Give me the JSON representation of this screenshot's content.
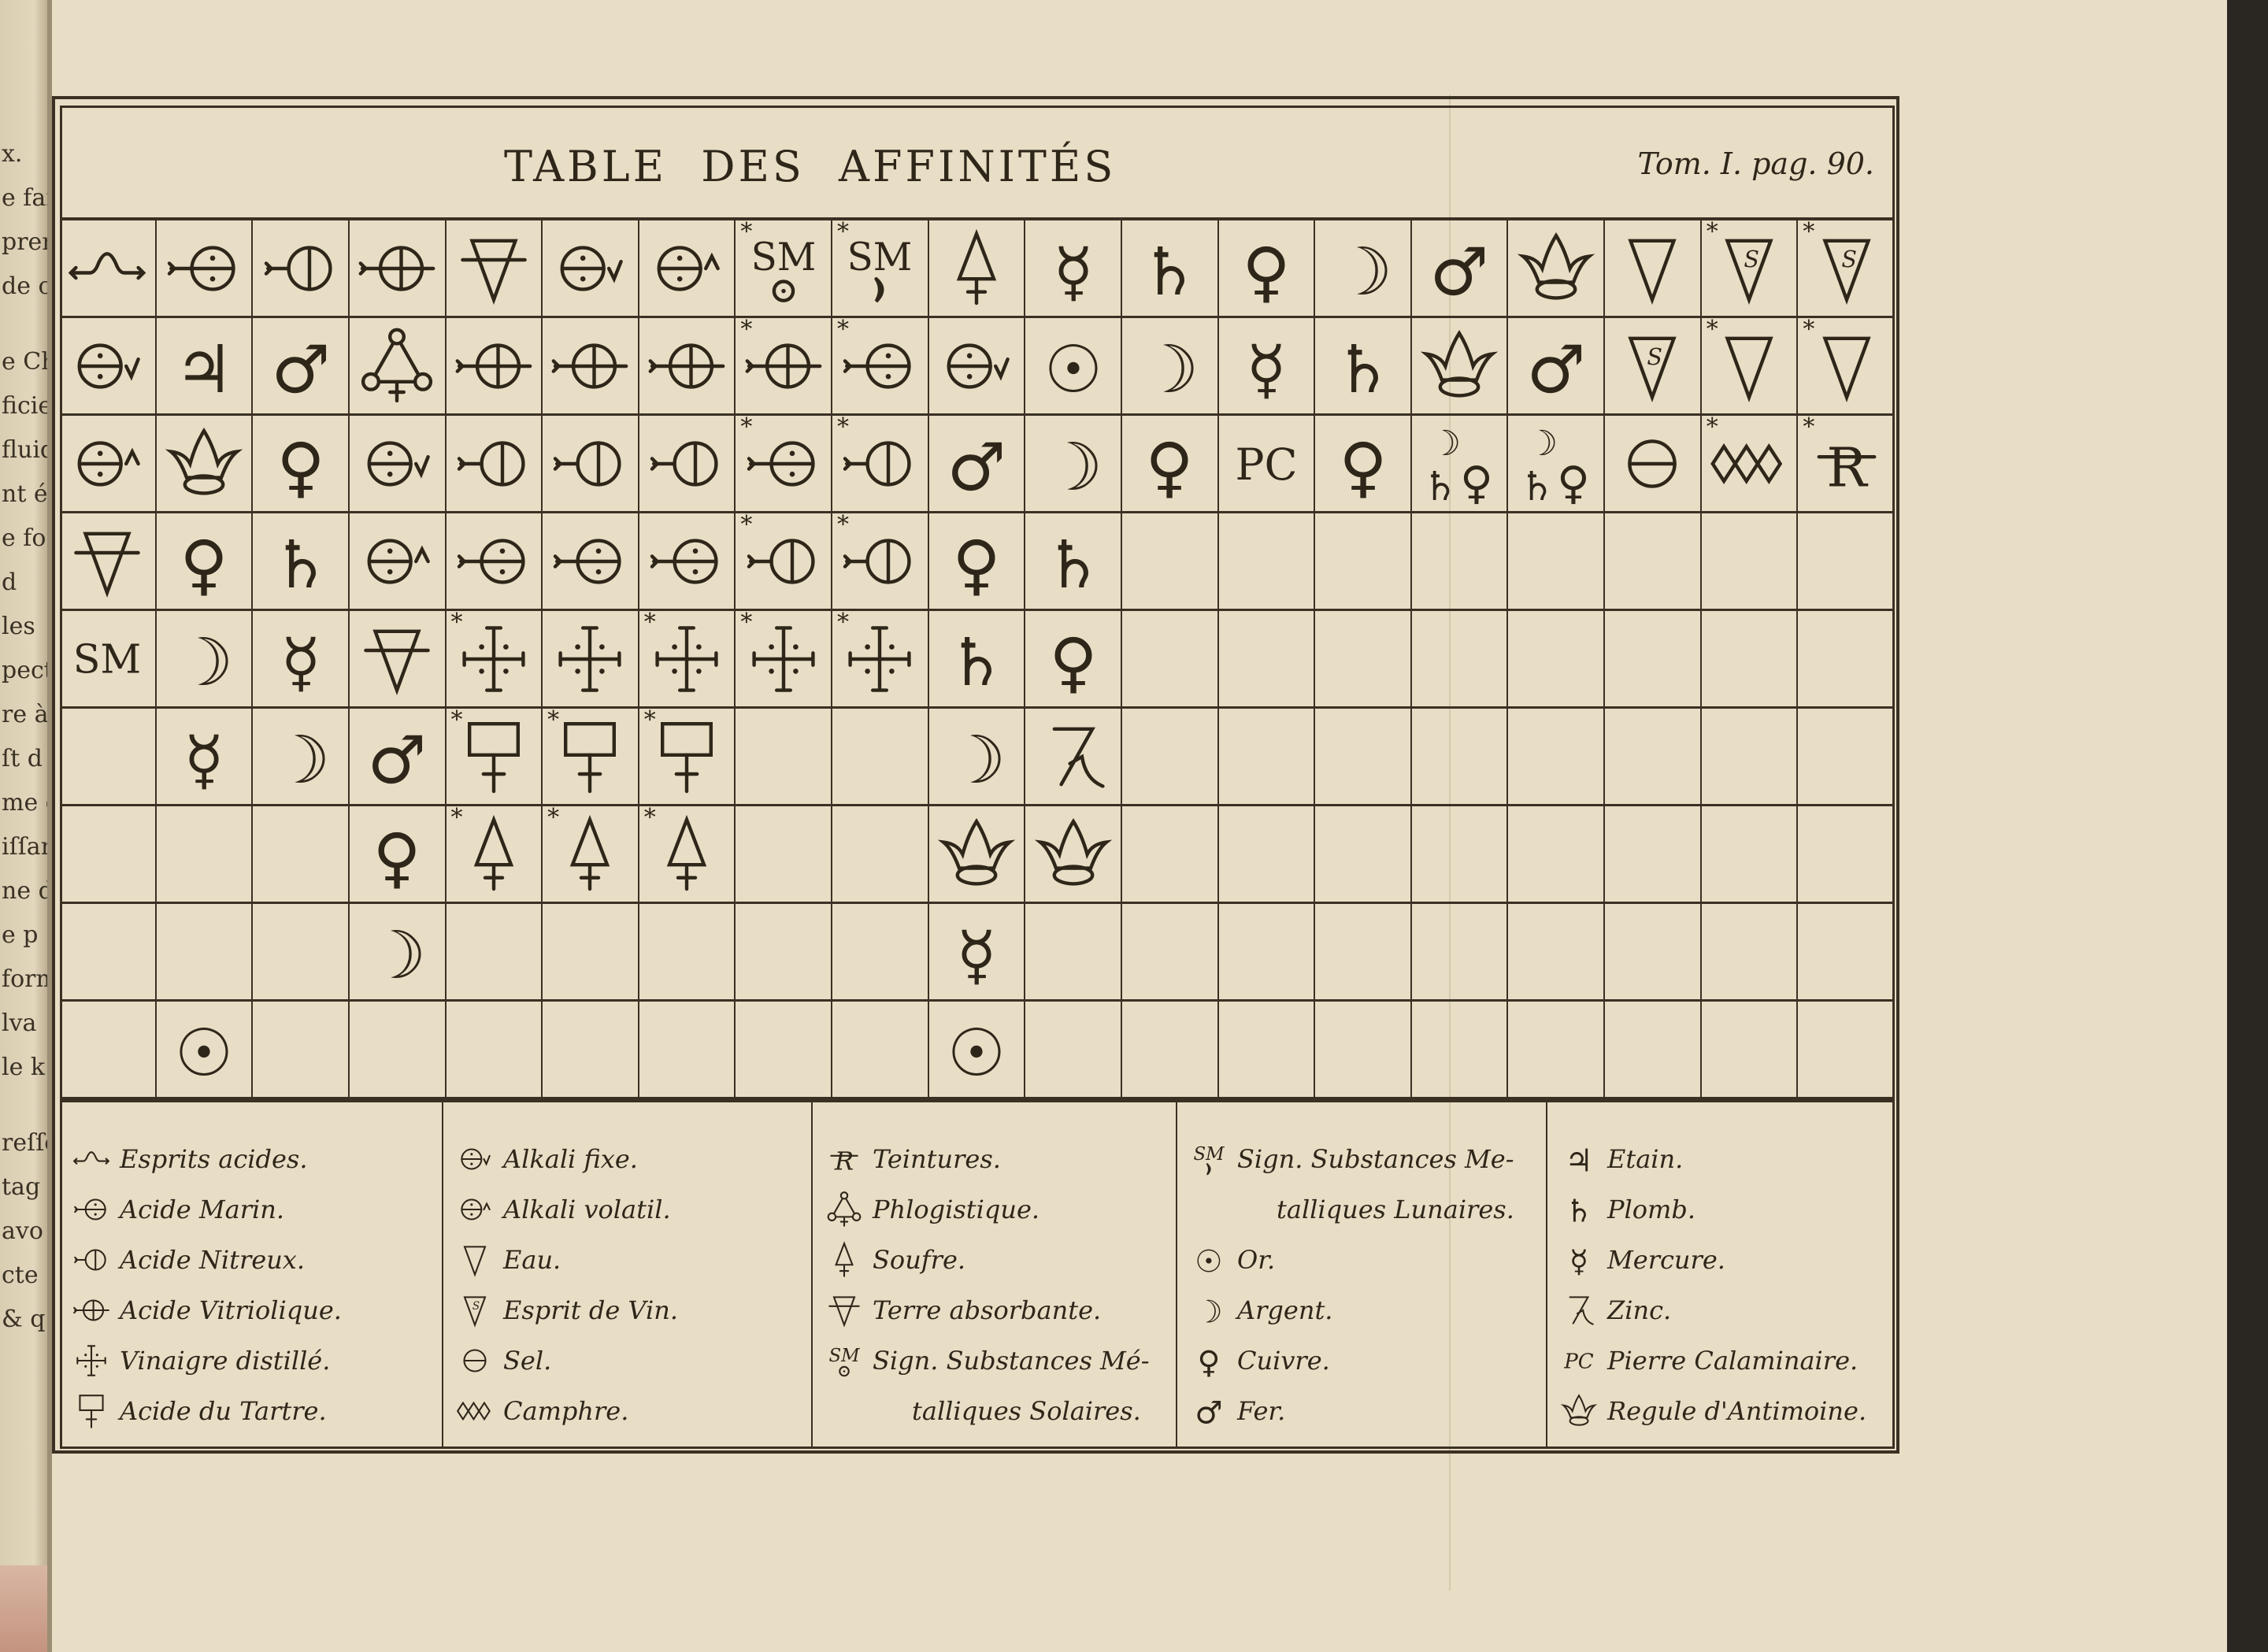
{
  "colors": {
    "paper": "#e8dec6",
    "ink": "#2e2619",
    "binding": "#2a2622"
  },
  "left_page_fragments": [
    "x.",
    "e faiso",
    "preno",
    "de ce",
    "e Ch",
    "ficiel",
    "fluid",
    "nt é",
    "e fo",
    "d",
    "les",
    "pecti",
    "re à",
    "ſt d",
    "me d",
    "iſſan",
    "ne d",
    "e p",
    "form",
    "lva",
    "le k",
    "reſſe",
    "tag",
    "avo",
    "cte",
    "& q"
  ],
  "header": {
    "title": "TABLE DES AFFINITÉS",
    "reference": "Tom. I. pag. 90."
  },
  "grid": {
    "columns": 19,
    "rows": [
      [
        {
          "sym": "esprits-acides"
        },
        {
          "sym": "acide-marin"
        },
        {
          "sym": "acide-nitreux"
        },
        {
          "sym": "acide-vitriolique"
        },
        {
          "sym": "terre-absorbante"
        },
        {
          "sym": "alkali-fixe"
        },
        {
          "sym": "alkali-volatil"
        },
        {
          "sym": "sm-solaire",
          "star": true
        },
        {
          "sym": "sm-lunaire",
          "star": true
        },
        {
          "sym": "soufre"
        },
        {
          "sym": "mercure"
        },
        {
          "sym": "plomb"
        },
        {
          "sym": "cuivre"
        },
        {
          "sym": "argent"
        },
        {
          "sym": "fer"
        },
        {
          "sym": "regule"
        },
        {
          "sym": "eau"
        },
        {
          "sym": "esprit-de-vin",
          "star": true
        },
        {
          "sym": "esprit-de-vin",
          "star": true
        }
      ],
      [
        {
          "sym": "alkali-fixe"
        },
        {
          "sym": "etain"
        },
        {
          "sym": "fer"
        },
        {
          "sym": "phlogistique"
        },
        {
          "sym": "acide-vitriolique"
        },
        {
          "sym": "acide-vitriolique"
        },
        {
          "sym": "acide-vitriolique"
        },
        {
          "sym": "acide-vitriolique",
          "star": true
        },
        {
          "sym": "acide-marin",
          "star": true
        },
        {
          "sym": "alkali-fixe"
        },
        {
          "sym": "or"
        },
        {
          "sym": "argent"
        },
        {
          "sym": "mercure"
        },
        {
          "sym": "plomb"
        },
        {
          "sym": "regule"
        },
        {
          "sym": "fer"
        },
        {
          "sym": "esprit-de-vin"
        },
        {
          "sym": "eau",
          "star": true
        },
        {
          "sym": "eau",
          "star": true
        }
      ],
      [
        {
          "sym": "alkali-volatil"
        },
        {
          "sym": "regule"
        },
        {
          "sym": "cuivre"
        },
        {
          "sym": "alkali-fixe"
        },
        {
          "sym": "acide-nitreux"
        },
        {
          "sym": "acide-nitreux"
        },
        {
          "sym": "acide-nitreux"
        },
        {
          "sym": "acide-marin",
          "star": true
        },
        {
          "sym": "acide-nitreux",
          "star": true
        },
        {
          "sym": "fer"
        },
        {
          "sym": "argent"
        },
        {
          "sym": "cuivre"
        },
        {
          "sym": "pierre-calaminaire"
        },
        {
          "sym": "cuivre"
        },
        {
          "sym": "argent-plomb-cuivre"
        },
        {
          "sym": "argent-plomb-cuivre"
        },
        {
          "sym": "sel"
        },
        {
          "sym": "camphre",
          "star": true
        },
        {
          "sym": "teintures",
          "star": true
        }
      ],
      [
        {
          "sym": "terre-absorbante"
        },
        {
          "sym": "cuivre"
        },
        {
          "sym": "plomb"
        },
        {
          "sym": "alkali-volatil"
        },
        {
          "sym": "acide-marin"
        },
        {
          "sym": "acide-marin"
        },
        {
          "sym": "acide-marin"
        },
        {
          "sym": "acide-nitreux",
          "star": true
        },
        {
          "sym": "acide-nitreux",
          "star": true
        },
        {
          "sym": "cuivre"
        },
        {
          "sym": "plomb"
        },
        {},
        {},
        {},
        {},
        {},
        {},
        {},
        {}
      ],
      [
        {
          "sym": "substances-metalliques"
        },
        {
          "sym": "argent"
        },
        {
          "sym": "mercure"
        },
        {
          "sym": "terre-absorbante"
        },
        {
          "sym": "vinaigre",
          "star": true
        },
        {
          "sym": "vinaigre"
        },
        {
          "sym": "vinaigre",
          "star": true
        },
        {
          "sym": "vinaigre",
          "star": true
        },
        {
          "sym": "vinaigre",
          "star": true
        },
        {
          "sym": "plomb"
        },
        {
          "sym": "cuivre"
        },
        {},
        {},
        {},
        {},
        {},
        {},
        {},
        {}
      ],
      [
        {},
        {
          "sym": "mercure"
        },
        {
          "sym": "argent"
        },
        {
          "sym": "fer"
        },
        {
          "sym": "acide-tartre",
          "star": true
        },
        {
          "sym": "acide-tartre",
          "star": true
        },
        {
          "sym": "acide-tartre",
          "star": true
        },
        {},
        {},
        {
          "sym": "argent"
        },
        {
          "sym": "zinc"
        },
        {},
        {},
        {},
        {},
        {},
        {},
        {},
        {}
      ],
      [
        {},
        {},
        {},
        {
          "sym": "cuivre"
        },
        {
          "sym": "soufre",
          "star": true
        },
        {
          "sym": "soufre",
          "star": true
        },
        {
          "sym": "soufre",
          "star": true
        },
        {},
        {},
        {
          "sym": "regule"
        },
        {
          "sym": "regule"
        },
        {},
        {},
        {},
        {},
        {},
        {},
        {},
        {}
      ],
      [
        {},
        {},
        {},
        {
          "sym": "argent"
        },
        {},
        {},
        {},
        {},
        {},
        {
          "sym": "mercure"
        },
        {},
        {},
        {},
        {},
        {},
        {},
        {},
        {},
        {}
      ],
      [
        {},
        {
          "sym": "or"
        },
        {},
        {},
        {},
        {},
        {},
        {},
        {},
        {
          "sym": "or"
        },
        {},
        {},
        {},
        {},
        {},
        {},
        {},
        {},
        {}
      ]
    ]
  },
  "legend": [
    [
      {
        "icon": "esprits-acides",
        "label": "Esprits acides."
      },
      {
        "icon": "acide-marin",
        "label": "Acide Marin."
      },
      {
        "icon": "acide-nitreux",
        "label": "Acide Nitreux."
      },
      {
        "icon": "acide-vitriolique",
        "label": "Acide Vitriolique."
      },
      {
        "icon": "vinaigre",
        "label": "Vinaigre distillé."
      },
      {
        "icon": "acide-tartre",
        "label": "Acide du Tartre."
      }
    ],
    [
      {
        "icon": "alkali-fixe",
        "label": "Alkali fixe."
      },
      {
        "icon": "alkali-volatil",
        "label": "Alkali volatil."
      },
      {
        "icon": "eau",
        "label": "Eau."
      },
      {
        "icon": "esprit-de-vin",
        "label": "Esprit de Vin."
      },
      {
        "icon": "sel",
        "label": "Sel."
      },
      {
        "icon": "camphre",
        "label": "Camphre."
      }
    ],
    [
      {
        "icon": "teintures",
        "label": "Teintures."
      },
      {
        "icon": "phlogistique",
        "label": "Phlogistique."
      },
      {
        "icon": "soufre",
        "label": "Soufre."
      },
      {
        "icon": "terre-absorbante",
        "label": "Terre absorbante."
      },
      {
        "icon": "sm-solaire",
        "label": "Sign. Substances Mé-"
      },
      {
        "label": "talliques Solaires."
      }
    ],
    [
      {
        "icon": "sm-lunaire",
        "label": "Sign. Substances Me-"
      },
      {
        "label": "talliques Lunaires."
      },
      {
        "icon": "or",
        "label": "Or."
      },
      {
        "icon": "argent",
        "label": "Argent."
      },
      {
        "icon": "cuivre",
        "label": "Cuivre."
      },
      {
        "icon": "fer",
        "label": "Fer."
      }
    ],
    [
      {
        "icon": "etain",
        "label": "Etain."
      },
      {
        "icon": "plomb",
        "label": "Plomb."
      },
      {
        "icon": "mercure",
        "label": "Mercure."
      },
      {
        "icon": "zinc",
        "label": "Zinc."
      },
      {
        "icon": "pierre-calaminaire",
        "label": "Pierre Calaminaire."
      },
      {
        "icon": "regule",
        "label": "Regule d'Antimoine."
      }
    ]
  ]
}
